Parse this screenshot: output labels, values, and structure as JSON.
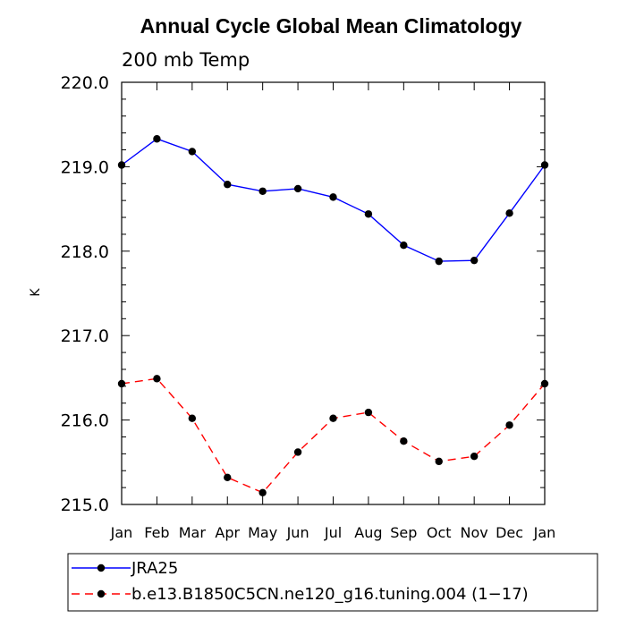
{
  "chart_data": {
    "type": "line",
    "title": "Annual Cycle Global Mean Climatology",
    "subtitle": "200 mb Temp",
    "ylabel": "K",
    "xlabel": "",
    "categories": [
      "Jan",
      "Feb",
      "Mar",
      "Apr",
      "May",
      "Jun",
      "Jul",
      "Aug",
      "Sep",
      "Oct",
      "Nov",
      "Dec",
      "Jan"
    ],
    "ylim": [
      215.0,
      220.0
    ],
    "yticks": [
      215.0,
      216.0,
      217.0,
      218.0,
      219.0,
      220.0
    ],
    "ytick_labels": [
      "215.0",
      "216.0",
      "217.0",
      "218.0",
      "219.0",
      "220.0"
    ],
    "grid": false,
    "legend_position": "bottom",
    "series": [
      {
        "name": "JRA25",
        "color": "#0000ff",
        "line_style": "solid",
        "marker": "filled-circle",
        "values": [
          219.02,
          219.33,
          219.18,
          218.79,
          218.71,
          218.74,
          218.64,
          218.44,
          218.07,
          217.88,
          217.89,
          218.45,
          219.02
        ]
      },
      {
        "name": "b.e13.B1850C5CN.ne120_g16.tuning.004 (1−17)",
        "color": "#ff0000",
        "line_style": "dashed",
        "marker": "filled-circle",
        "values": [
          216.43,
          216.49,
          216.02,
          215.32,
          215.14,
          215.62,
          216.02,
          216.09,
          215.75,
          215.51,
          215.57,
          215.94,
          216.43
        ]
      }
    ]
  }
}
